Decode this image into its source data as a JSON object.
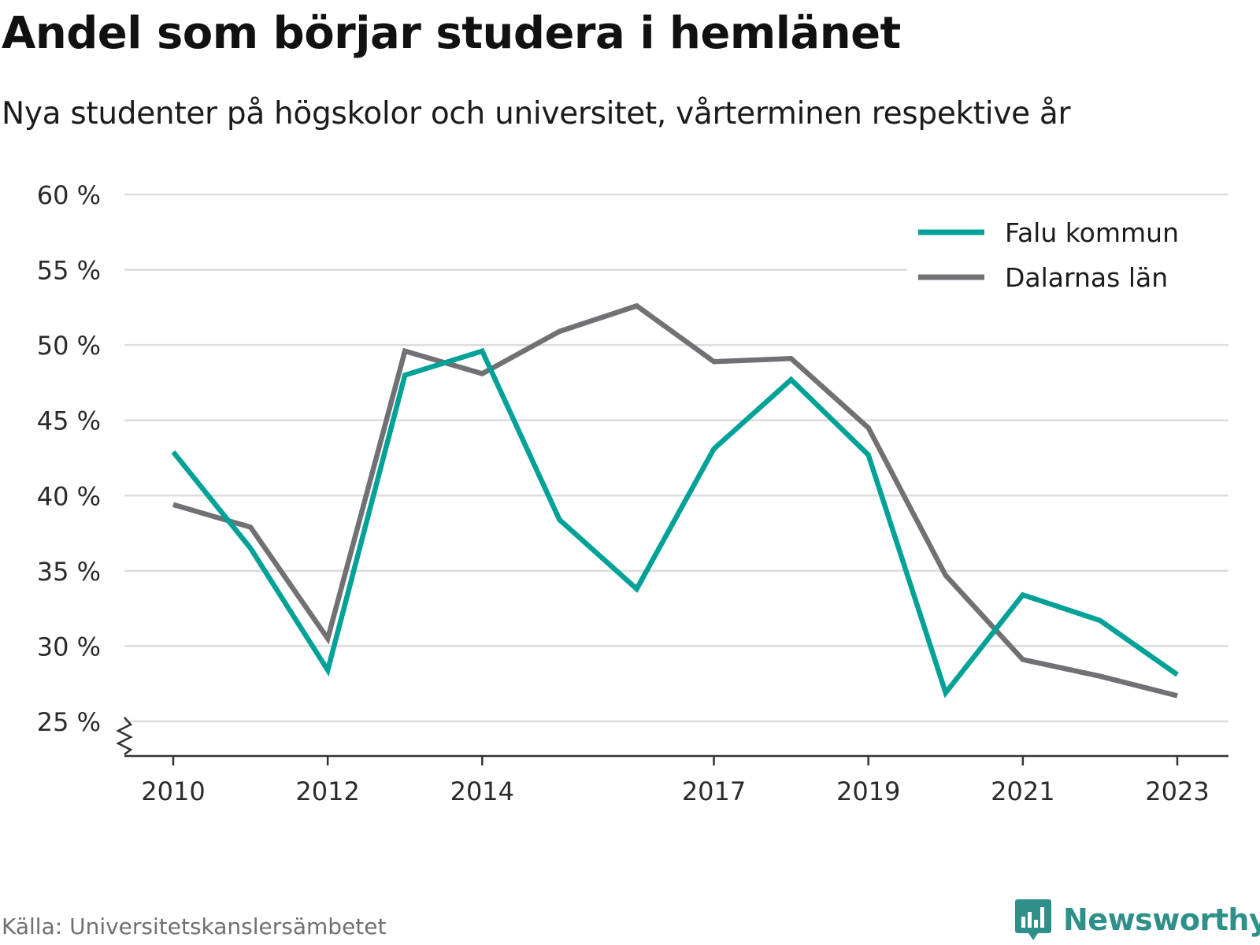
{
  "header": {
    "title": "Andel som börjar studera i hemlänet",
    "subtitle": "Nya studenter på högskolor och universitet, vårterminen respektive år"
  },
  "footer": {
    "source": "Källa: Universitetskanslersämbetet",
    "brand": "Newsworthy"
  },
  "colors": {
    "falu": "#00a197",
    "dalarna": "#717075",
    "grid": "#dcdcdc",
    "axis": "#333333",
    "brand": "#2f8f89"
  },
  "icons": {
    "brand_logo": "bar-chart-speech-bubble-icon",
    "axis_break": "zigzag-break-icon"
  },
  "chart_data": {
    "type": "line",
    "x": [
      2010,
      2011,
      2012,
      2013,
      2014,
      2015,
      2016,
      2017,
      2018,
      2019,
      2020,
      2021,
      2022,
      2023
    ],
    "x_tick_labels": [
      "2010",
      "2012",
      "2014",
      "2017",
      "2019",
      "2021",
      "2023"
    ],
    "x_tick_values": [
      2010,
      2012,
      2014,
      2017,
      2019,
      2021,
      2023
    ],
    "y_tick_labels": [
      "25 %",
      "30 %",
      "35 %",
      "40 %",
      "45 %",
      "50 %",
      "55 %",
      "60 %"
    ],
    "y_tick_values": [
      25,
      30,
      35,
      40,
      45,
      50,
      55,
      60
    ],
    "ylim": [
      25,
      60
    ],
    "y_axis_break": true,
    "grid": true,
    "legend_position": "top-right",
    "series": [
      {
        "name": "Falu kommun",
        "values": [
          42.9,
          36.5,
          28.4,
          48.0,
          49.6,
          38.4,
          33.8,
          43.1,
          47.7,
          42.7,
          26.9,
          33.4,
          31.7,
          28.1
        ]
      },
      {
        "name": "Dalarnas län",
        "values": [
          39.4,
          37.9,
          30.5,
          49.6,
          48.1,
          50.9,
          52.6,
          48.9,
          49.1,
          44.5,
          34.7,
          29.1,
          28.0,
          26.7
        ]
      }
    ]
  }
}
